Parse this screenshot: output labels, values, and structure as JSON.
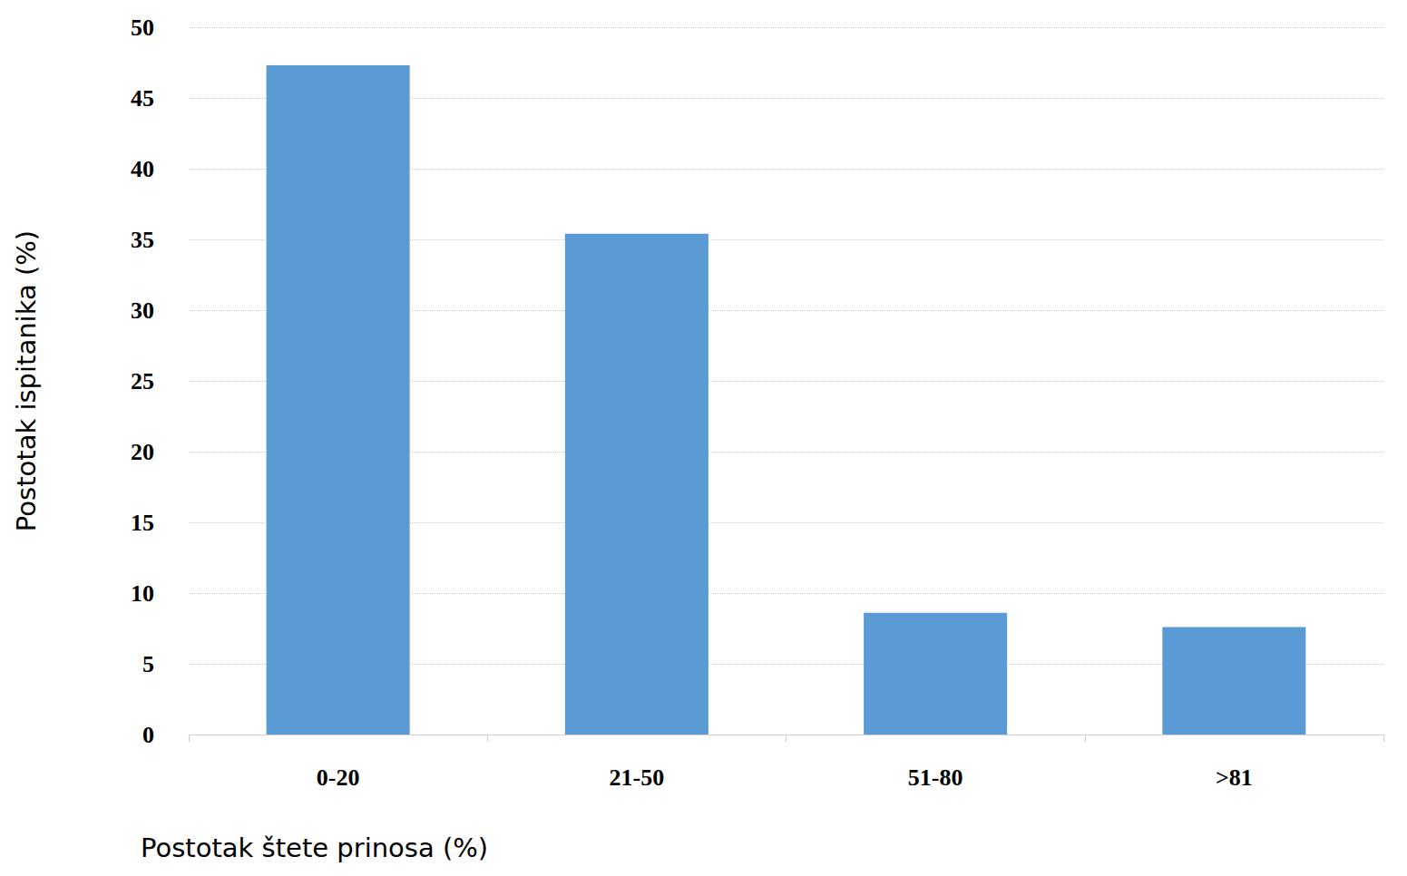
{
  "chart_data": {
    "type": "bar",
    "x_label": "Postotak štete prinosa (%)",
    "y_label": "Postotak ispitanika (%)",
    "categories": [
      "0-20",
      "21-50",
      "51-80",
      ">81"
    ],
    "values": [
      47.3,
      35.4,
      8.6,
      7.6
    ],
    "color": "#5b9bd5",
    "ylim": [
      0,
      50
    ],
    "yticks": [
      0,
      5,
      10,
      15,
      20,
      25,
      30,
      35,
      40,
      45,
      50
    ],
    "grid": true
  }
}
